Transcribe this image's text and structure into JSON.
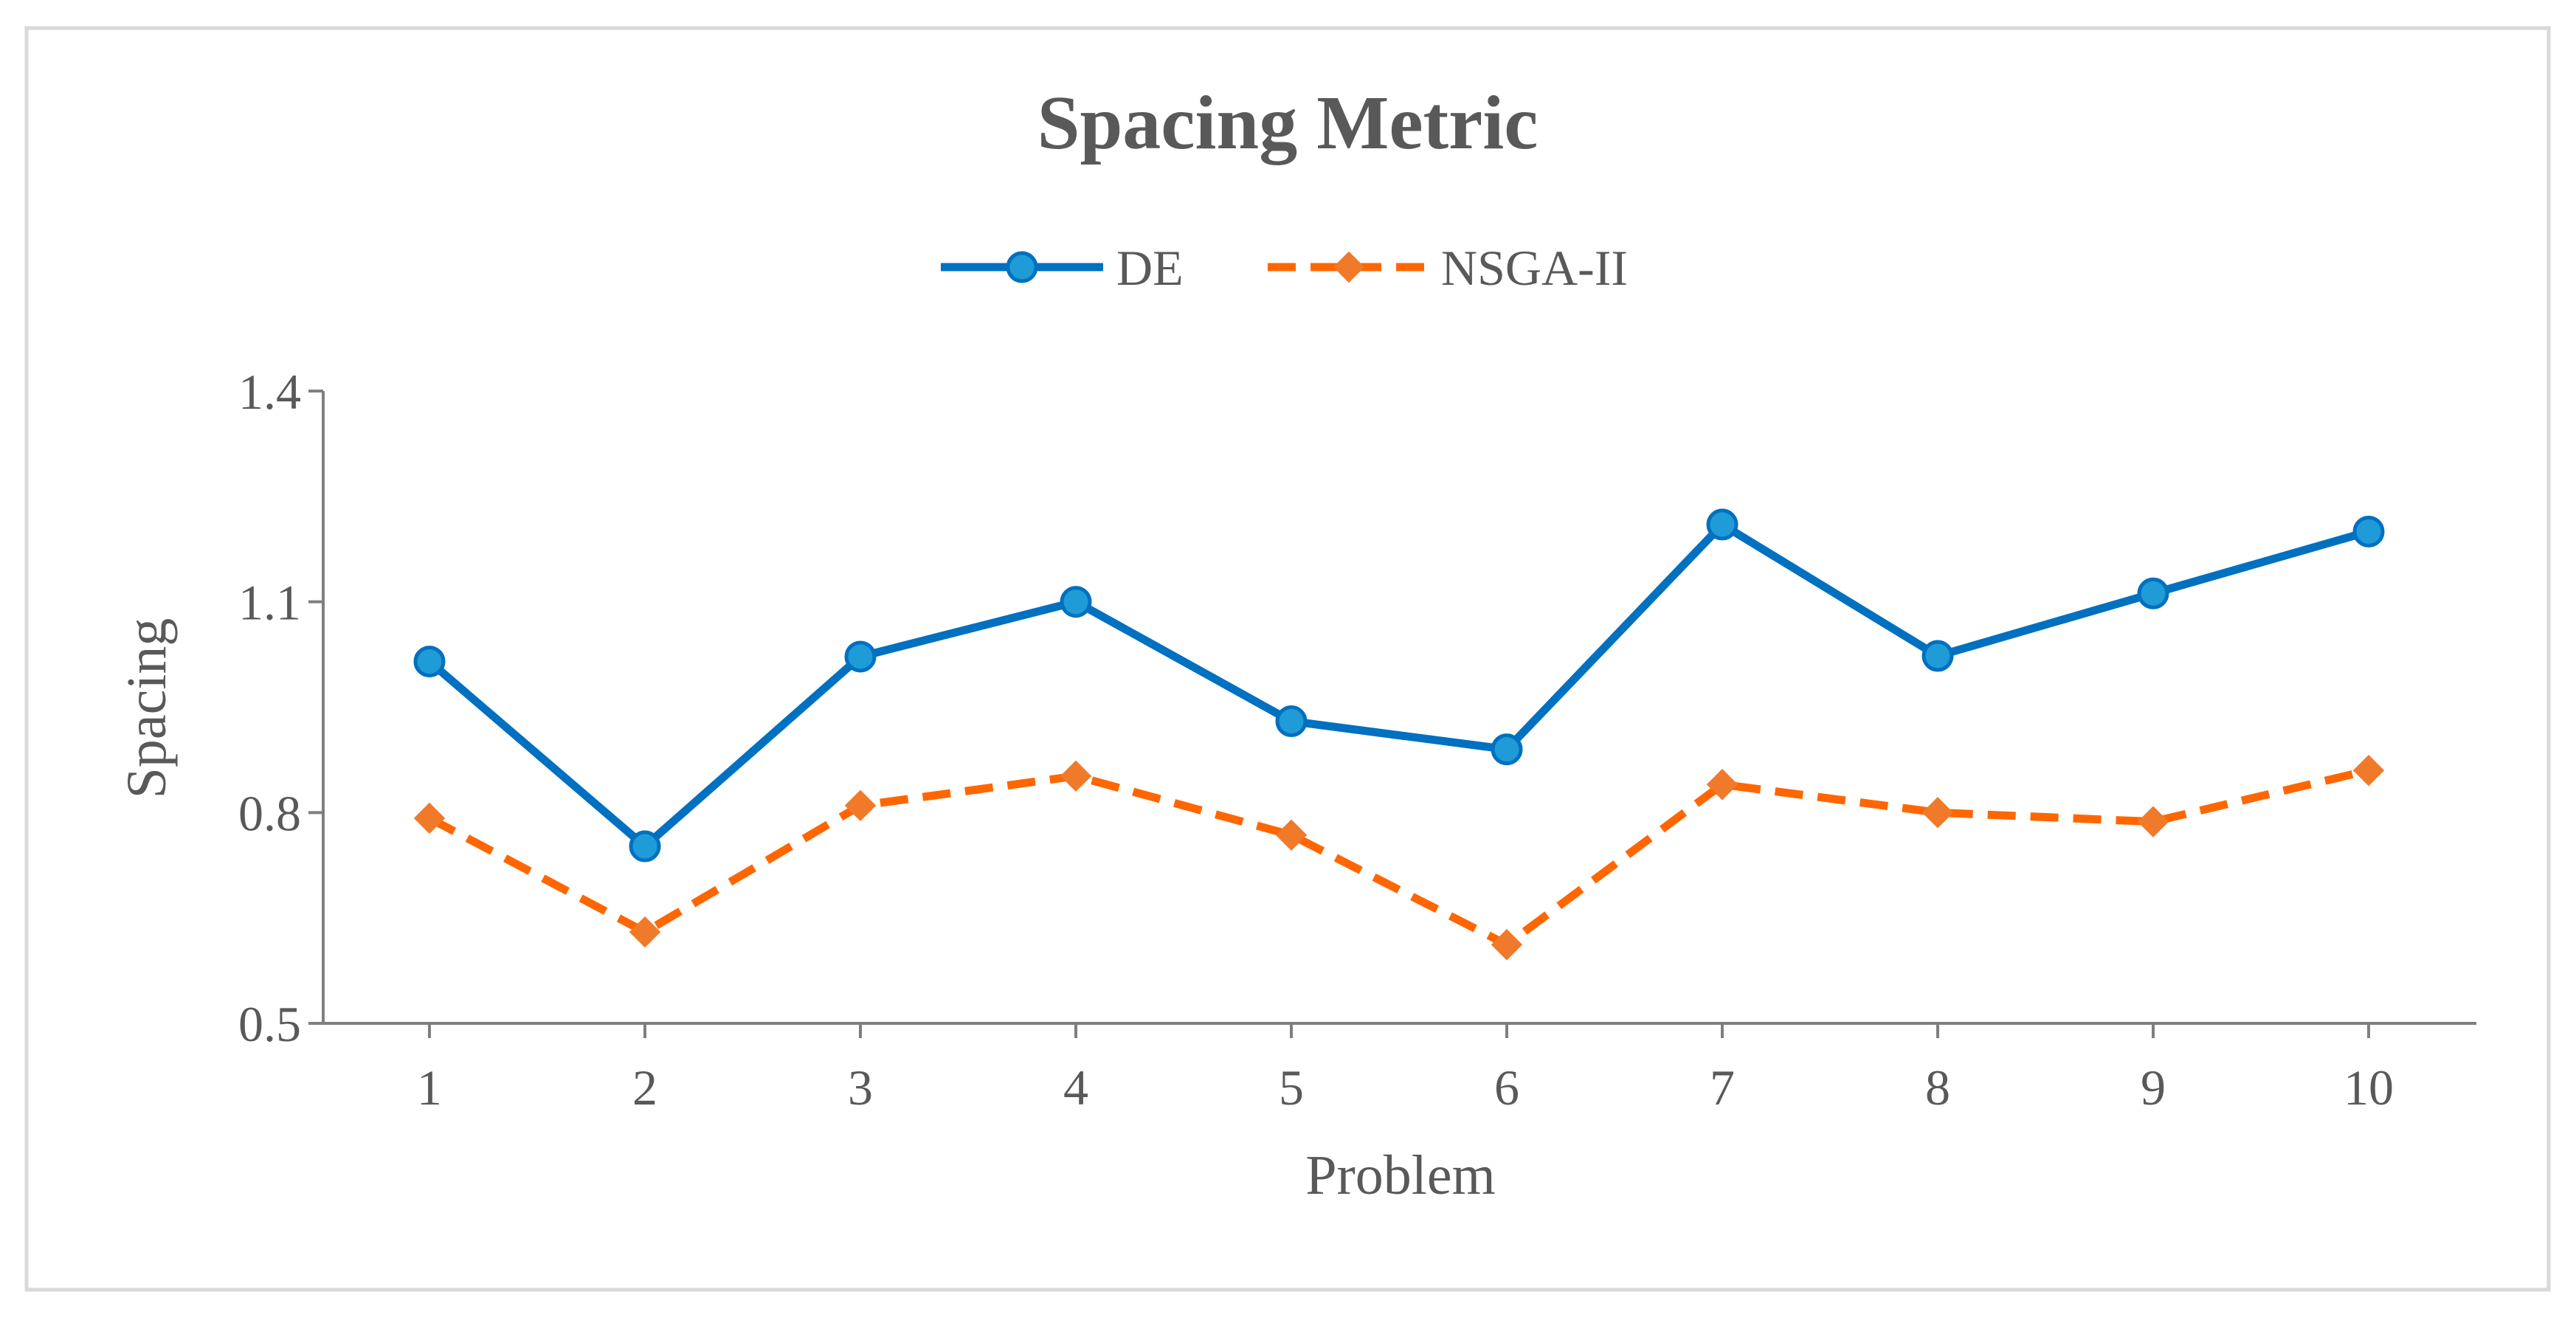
{
  "chart_data": {
    "type": "line",
    "title": "Spacing Metric",
    "xlabel": "Problem",
    "ylabel": "Spacing",
    "categories": [
      "1",
      "2",
      "3",
      "4",
      "5",
      "6",
      "7",
      "8",
      "9",
      "10"
    ],
    "x": [
      1,
      2,
      3,
      4,
      5,
      6,
      7,
      8,
      9,
      10
    ],
    "ylim": [
      0.5,
      1.4
    ],
    "yticks": [
      0.5,
      0.8,
      1.1,
      1.4
    ],
    "ytick_labels": [
      "0.5",
      "0.8",
      "1.1",
      "1.4"
    ],
    "grid": false,
    "legend_position": "top-center",
    "series": [
      {
        "name": "DE",
        "values": [
          1.015,
          0.752,
          1.022,
          1.1,
          0.93,
          0.89,
          1.21,
          1.023,
          1.112,
          1.2
        ],
        "color": "#0070C0",
        "marker": "circle",
        "line_style": "solid",
        "marker_color": "#1F9BD7"
      },
      {
        "name": "NSGA-II",
        "values": [
          0.792,
          0.63,
          0.81,
          0.852,
          0.768,
          0.612,
          0.84,
          0.8,
          0.787,
          0.86
        ],
        "color": "#FF6600",
        "marker": "diamond",
        "line_style": "dashed",
        "marker_color": "#F07A2A"
      }
    ]
  },
  "colors": {
    "frame_border": "#D9D9D9",
    "axis_line": "#7F7F7F",
    "text": "#595959"
  }
}
